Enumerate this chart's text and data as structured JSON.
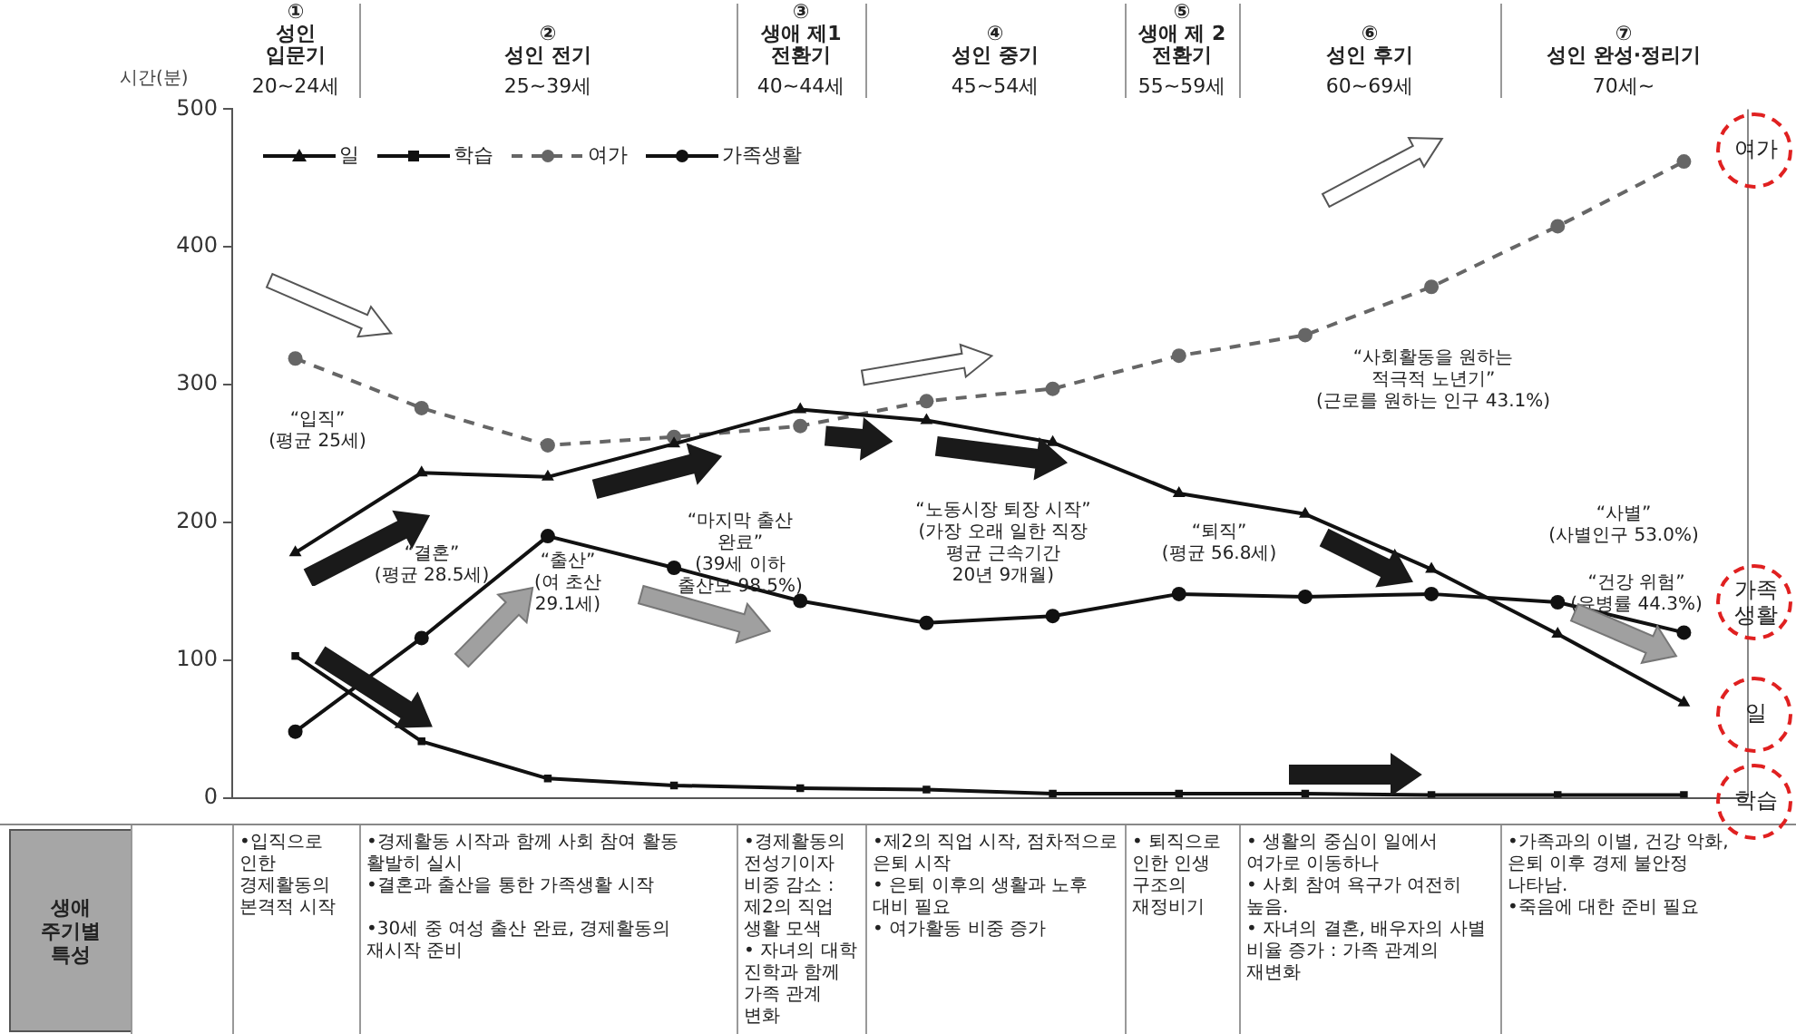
{
  "chart_data": {
    "type": "line",
    "ylabel": "시간(분)",
    "categories": [
      null,
      null,
      null,
      null,
      null,
      null,
      null,
      null,
      null,
      null,
      null,
      null
    ],
    "series": [
      {
        "name": "일",
        "color": "#111111",
        "marker": "triangle",
        "line_style": "solid",
        "values": [
          178,
          236,
          233,
          257,
          282,
          274,
          258,
          221,
          206,
          166,
          119,
          69
        ]
      },
      {
        "name": "학습",
        "color": "#111111",
        "marker": "square",
        "line_style": "solid",
        "values": [
          103,
          41,
          14,
          9,
          7,
          6,
          3,
          3,
          3,
          2,
          2,
          2
        ]
      },
      {
        "name": "여가",
        "color": "#666666",
        "marker": "circle",
        "line_style": "dashed",
        "values": [
          319,
          283,
          256,
          262,
          270,
          288,
          297,
          321,
          336,
          371,
          415,
          462
        ]
      },
      {
        "name": "가족생활",
        "color": "#111111",
        "marker": "circle",
        "line_style": "solid",
        "values": [
          48,
          116,
          190,
          167,
          143,
          127,
          132,
          148,
          146,
          148,
          142,
          120
        ]
      }
    ],
    "ylim": [
      0,
      500
    ],
    "yticks": [
      0,
      100,
      200,
      300,
      400,
      500
    ],
    "grid": false,
    "legend": "top left",
    "tick_labels": "y",
    "annotations": [
      "①\n성인\n입문기",
      "②\n성인 전기",
      "③\n생애 제1\n전환기",
      "④\n성인 중기",
      "⑤\n생애 제 2\n전환기",
      "⑥\n성인 후기",
      "⑦\n성인 완성·정리기",
      "20~24세",
      "25~39세",
      "40~44세",
      "45~54세",
      "55~59세",
      "60~69세",
      "70세~",
      "생애\n주기별\n특성",
      "•입직으로 인한 경제활동의 본격적 시작",
      "•경제활동 시작과 함께 사회 참여 활동 활발히 실시\n•결혼과 출산을 통한 가족생활 시작\n\n•30세 중 여성 출산 완료, 경제활동의 재시작 준비",
      "•경제활동의 전성기이자 비중 감소 : 제2의 직업 생활 모색\n• 자녀의 대학 진학과 함께 가족 관계 변화",
      "•제2의 직업 시작, 점차적으로 은퇴 시작\n• 은퇴 이후의 생활과 노후 대비 필요\n• 여가활동 비중 증가",
      "• 퇴직으로 인한 인생 구조의 재정비기",
      "• 생활의 중심이 일에서 여가로 이동하나\n• 사회 참여 욕구가 여전히 높음.\n• 자녀의 결혼, 배우자의 사별 비율 증가 : 가족 관계의 재변화",
      "•가족과의 이별, 건강 악화, 은퇴 이후 경제 불안정 나타남.\n•죽음에 대한 준비 필요",
      "“입직”\n(평균 25세)",
      "“결혼”\n(평균 28.5세)",
      "“출산”\n(여 초산\n29.1세)",
      "“마지막 출산\n완료”\n(39세 이하\n출산모 98.5%)",
      "“노동시장 퇴장 시작”\n(가장 오래 일한 직장\n평균 근속기간\n20년 9개월)",
      "“퇴직”\n(평균 56.8세)",
      "“사회활동을 원하는\n적극적 노년기”\n(근로를 원하는 인구 43.1%)",
      "“사별”\n(사별인구 53.0%)",
      "“건강 위험”\n(유병률 44.3%)"
    ]
  }
}
